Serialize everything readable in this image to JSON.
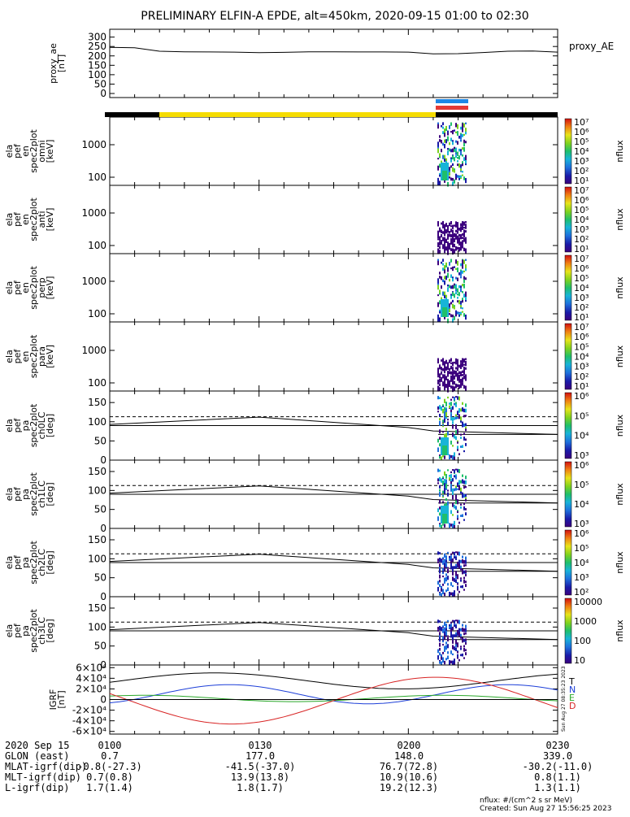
{
  "title": "PRELIMINARY ELFIN-A EPDE, alt=450km, 2020-09-15 01:00 to 02:30",
  "right_footer": {
    "units": "nflux: #/(cm^2 s sr MeV)",
    "created": "Created: Sun Aug 27 15:56:25 2023"
  },
  "side_stamp": "Sun Aug 27 08:35:23 2023",
  "colors": {
    "black_bar": "#000000",
    "yellow_bar": "#f5dc00",
    "blue_marker": "#1e88e5",
    "red_marker": "#e53935",
    "gsm_T": "#000000",
    "gsm_N": "#1d3fd8",
    "gsm_E": "#2aa82a",
    "gsm_D": "#d82424"
  },
  "chart_data": [
    {
      "id": "proxy_ae",
      "type": "line",
      "ylabel_lines": [
        "proxy_ae",
        "[nT]"
      ],
      "ytick_labels": [
        "0",
        "50",
        "100",
        "150",
        "200",
        "250",
        "300"
      ],
      "ylim": [
        0,
        320
      ],
      "legend": "proxy_AE",
      "x": [
        0,
        5,
        10,
        15,
        20,
        25,
        30,
        35,
        40,
        45,
        50,
        55,
        60,
        65,
        70,
        75,
        80,
        85,
        90
      ],
      "values": [
        245,
        243,
        225,
        222,
        221,
        220,
        217,
        219,
        222,
        222,
        221,
        221,
        220,
        211,
        212,
        218,
        225,
        226,
        220
      ]
    },
    {
      "id": "en_omni",
      "type": "heatmap",
      "ylabel_lines": [
        "ela",
        "pef",
        "en",
        "spec2plot",
        "omni",
        "[keV]"
      ],
      "ytick_labels": [
        "100",
        "1000"
      ],
      "colorbar": {
        "labels": [
          "10¹",
          "10²",
          "10³",
          "10⁴",
          "10⁵",
          "10⁶",
          "10⁷"
        ],
        "unit": "nflux"
      }
    },
    {
      "id": "en_anti",
      "type": "heatmap",
      "ylabel_lines": [
        "ela",
        "pef",
        "en",
        "spec2plot",
        "anti",
        "[keV]"
      ],
      "ytick_labels": [
        "100",
        "1000"
      ],
      "colorbar": {
        "labels": [
          "10¹",
          "10²",
          "10³",
          "10⁴",
          "10⁵",
          "10⁶",
          "10⁷"
        ],
        "unit": "nflux"
      }
    },
    {
      "id": "en_perp",
      "type": "heatmap",
      "ylabel_lines": [
        "ela",
        "pef",
        "en",
        "spec2plot",
        "perp",
        "[keV]"
      ],
      "ytick_labels": [
        "100",
        "1000"
      ],
      "colorbar": {
        "labels": [
          "10¹",
          "10²",
          "10³",
          "10⁴",
          "10⁵",
          "10⁶",
          "10⁷"
        ],
        "unit": "nflux"
      }
    },
    {
      "id": "en_para",
      "type": "heatmap",
      "ylabel_lines": [
        "ela",
        "pef",
        "en",
        "spec2plot",
        "para",
        "[keV]"
      ],
      "ytick_labels": [
        "100",
        "1000"
      ],
      "colorbar": {
        "labels": [
          "10¹",
          "10²",
          "10³",
          "10⁴",
          "10⁵",
          "10⁶",
          "10⁷"
        ],
        "unit": "nflux"
      }
    },
    {
      "id": "pa_ch0",
      "type": "heatmap",
      "ylabel_lines": [
        "ela",
        "pef",
        "pa",
        "spec2plot",
        "ch0LC",
        "[deg]"
      ],
      "ytick_labels": [
        "0",
        "50",
        "100",
        "150"
      ],
      "ylim": [
        0,
        180
      ],
      "colorbar": {
        "labels": [
          "10³",
          "10⁴",
          "10⁵",
          "10⁶"
        ],
        "unit": "nflux"
      }
    },
    {
      "id": "pa_ch1",
      "type": "heatmap",
      "ylabel_lines": [
        "ela",
        "pef",
        "pa",
        "spec2plot",
        "ch1LC",
        "[deg]"
      ],
      "ytick_labels": [
        "0",
        "50",
        "100",
        "150"
      ],
      "ylim": [
        0,
        180
      ],
      "colorbar": {
        "labels": [
          "10³",
          "10⁴",
          "10⁵",
          "10⁶"
        ],
        "unit": "nflux"
      }
    },
    {
      "id": "pa_ch2",
      "type": "heatmap",
      "ylabel_lines": [
        "ela",
        "pef",
        "pa",
        "spec2plot",
        "ch2LC",
        "[deg]"
      ],
      "ytick_labels": [
        "0",
        "50",
        "100",
        "150"
      ],
      "ylim": [
        0,
        180
      ],
      "colorbar": {
        "labels": [
          "10²",
          "10³",
          "10⁴",
          "10⁵",
          "10⁶"
        ],
        "unit": "nflux"
      }
    },
    {
      "id": "pa_ch3",
      "type": "heatmap",
      "ylabel_lines": [
        "ela",
        "pef",
        "pa",
        "spec2plot",
        "ch3LC",
        "[deg]"
      ],
      "ytick_labels": [
        "0",
        "50",
        "100",
        "150"
      ],
      "ylim": [
        0,
        180
      ],
      "colorbar": {
        "labels": [
          "10",
          "100",
          "1000",
          "10000"
        ],
        "unit": "nflux"
      }
    },
    {
      "id": "igrf",
      "type": "line",
      "ylabel_lines": [
        "IGRF",
        "[nT]"
      ],
      "ytick_labels": [
        "-6×10⁴",
        "-4×10⁴",
        "-2×10⁴",
        "0",
        "2×10⁴",
        "4×10⁴",
        "6×10⁴"
      ],
      "ylim": [
        -65000,
        65000
      ],
      "legend": [
        "T",
        "N",
        "E",
        "D"
      ]
    }
  ],
  "axis": {
    "rows": [
      {
        "label": "2020 Sep 15",
        "values": [
          "0100",
          "0130",
          "0200",
          "0230"
        ]
      },
      {
        "label": "GLON (east)",
        "values": [
          "0.7",
          "177.0",
          "148.0",
          "339.0"
        ]
      },
      {
        "label": "MLAT-igrf(dip)",
        "values": [
          "-0.8(-27.3)",
          "-41.5(-37.0)",
          "76.7(72.8)",
          "-30.2(-11.0)"
        ]
      },
      {
        "label": "MLT-igrf(dip)",
        "values": [
          "0.7(0.8)",
          "13.9(13.8)",
          "10.9(10.6)",
          "0.8(1.1)"
        ]
      },
      {
        "label": "L-igrf(dip)",
        "values": [
          "1.7(1.4)",
          "1.8(1.7)",
          "19.2(12.3)",
          "1.3(1.1)"
        ]
      }
    ]
  }
}
